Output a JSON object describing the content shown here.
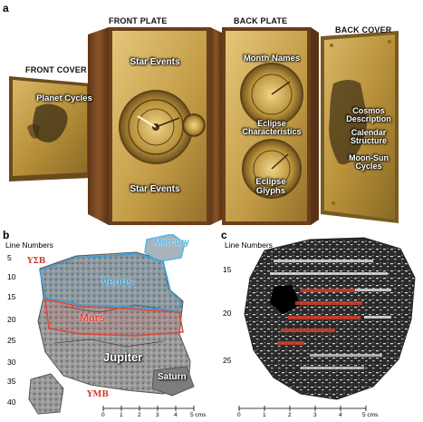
{
  "panel_a": {
    "letter": "a",
    "front_cover": {
      "header": "FRONT COVER",
      "label": "Planet Cycles"
    },
    "front_plate": {
      "header": "FRONT PLATE",
      "label_top": "Star Events",
      "label_bottom": "Star Events"
    },
    "back_plate": {
      "header": "BACK PLATE",
      "label_top": "Month Names",
      "label_mid": "Eclipse Characteristics",
      "label_bottom": "Eclipse Glyphs"
    },
    "back_cover": {
      "header": "BACK COVER",
      "labels": [
        "Cosmos Description",
        "Calendar Structure",
        "Moon-Sun Cycles"
      ]
    }
  },
  "panel_b": {
    "letter": "b",
    "line_numbers_title": "Line Numbers",
    "line_numbers": [
      "5",
      "10",
      "15",
      "20",
      "25",
      "30",
      "35",
      "40"
    ],
    "planets": [
      "Mercury",
      "Venus",
      "Mars",
      "Jupiter",
      "Saturn"
    ],
    "glyph_top": "ΥΣΒ",
    "glyph_bottom": "ΥΜΒ",
    "scale_ticks": [
      "0",
      "1",
      "2",
      "3",
      "4",
      "5 cms"
    ]
  },
  "panel_c": {
    "letter": "c",
    "line_numbers_title": "Line Numbers",
    "line_numbers": [
      "15",
      "20",
      "25"
    ],
    "scale_ticks": [
      "0",
      "1",
      "2",
      "3",
      "4",
      "5 cms"
    ]
  },
  "colors": {
    "gold": "#b8913a",
    "wood": "#7a4a22",
    "mercury": "#4fb7e6",
    "venus": "#3aa0d8",
    "mars": "#e0453a",
    "glyph_red": "#d23c2c"
  }
}
